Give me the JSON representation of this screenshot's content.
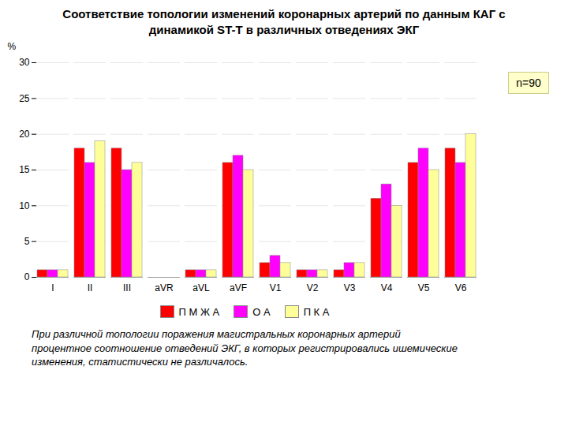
{
  "chart_data": {
    "type": "bar",
    "title": "Соответствие топологии изменений коронарных артерий по данным КАГ с\nдинамикой ST-T в различных отведениях ЭКГ",
    "ylabel": "%",
    "categories": [
      "I",
      "II",
      "III",
      "aVR",
      "aVL",
      "aVF",
      "V1",
      "V2",
      "V3",
      "V4",
      "V5",
      "V6"
    ],
    "series": [
      {
        "name": "П М Ж А",
        "color": "#FF0000",
        "values": [
          1,
          18,
          18,
          0,
          1,
          16,
          2,
          1,
          1,
          11,
          16,
          18
        ]
      },
      {
        "name": "О А",
        "color": "#FF00FF",
        "values": [
          1,
          16,
          15,
          0,
          1,
          17,
          3,
          1,
          2,
          13,
          18,
          16
        ]
      },
      {
        "name": "П К А",
        "color": "#FFFF99",
        "values": [
          1,
          19,
          16,
          0,
          1,
          15,
          2,
          1,
          2,
          10,
          15,
          20
        ]
      }
    ],
    "ylim": [
      0,
      30
    ],
    "yticks": [
      0,
      5,
      10,
      15,
      20,
      25,
      30
    ],
    "grid": true,
    "legend": "bottom",
    "annotations": [
      "n=90"
    ],
    "caption": "При различной топологии поражения магистральных коронарных артерий\nпроцентное соотношение отведений ЭКГ, в которых регистрировались ишемические\nизменения, статистически не различалось."
  }
}
